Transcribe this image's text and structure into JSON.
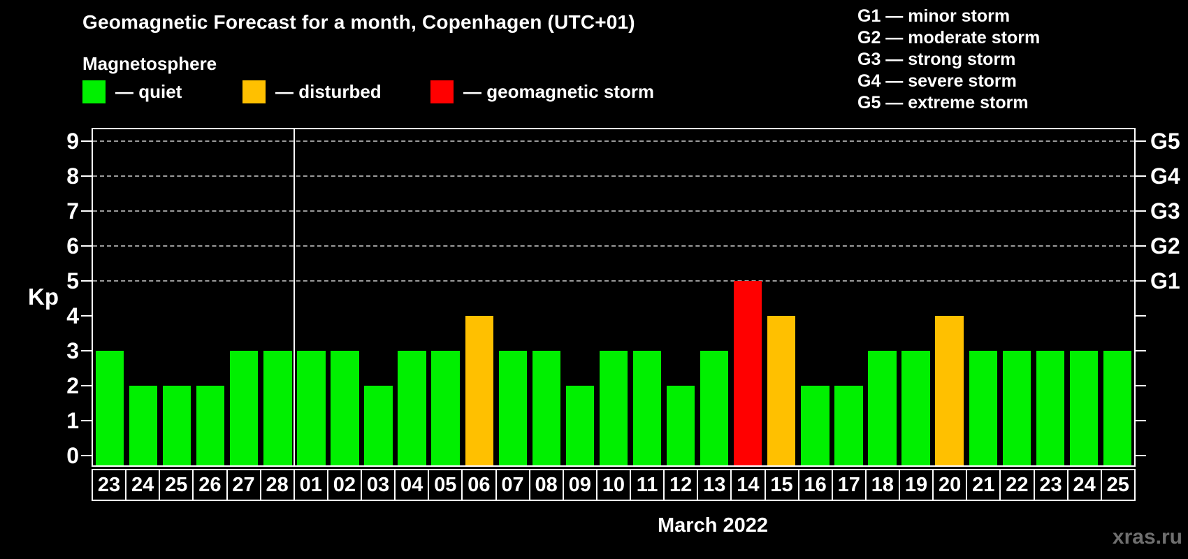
{
  "subtitle": "Magnetosphere",
  "watermark": "xras.ru",
  "legend": {
    "items": [
      {
        "name": "quiet",
        "color": "#00f000",
        "label": "— quiet",
        "x": 118
      },
      {
        "name": "disturbed",
        "color": "#ffc000",
        "label": "— disturbed",
        "x": 347
      },
      {
        "name": "storm",
        "color": "#ff0000",
        "label": "— geomagnetic storm",
        "x": 616
      }
    ]
  },
  "storm_scale": [
    "G1 — minor storm",
    "G2 — moderate storm",
    "G3 — strong storm",
    "G4 — severe storm",
    "G5 — extreme storm"
  ],
  "chart_data": {
    "type": "bar",
    "title": "Geomagnetic Forecast for a month, Copenhagen (UTC+01)",
    "ylabel": "Kp",
    "xlabel": "March 2022",
    "ylim": [
      0,
      9
    ],
    "yticks": [
      0,
      1,
      2,
      3,
      4,
      5,
      6,
      7,
      8,
      9
    ],
    "gridlines_at": [
      5,
      6,
      7,
      8,
      9
    ],
    "grid_style": "dashed",
    "right_axis_labels": [
      {
        "label": "G1",
        "kp": 5
      },
      {
        "label": "G2",
        "kp": 6
      },
      {
        "label": "G3",
        "kp": 7
      },
      {
        "label": "G4",
        "kp": 8
      },
      {
        "label": "G5",
        "kp": 9
      }
    ],
    "status_colors": {
      "quiet": "#00f000",
      "disturbed": "#ffc000",
      "storm": "#ff0000"
    },
    "month_separator_after_index": 5,
    "bars": [
      {
        "date": "23",
        "kp": 3,
        "status": "quiet"
      },
      {
        "date": "24",
        "kp": 2,
        "status": "quiet"
      },
      {
        "date": "25",
        "kp": 2,
        "status": "quiet"
      },
      {
        "date": "26",
        "kp": 2,
        "status": "quiet"
      },
      {
        "date": "27",
        "kp": 3,
        "status": "quiet"
      },
      {
        "date": "28",
        "kp": 3,
        "status": "quiet"
      },
      {
        "date": "01",
        "kp": 3,
        "status": "quiet"
      },
      {
        "date": "02",
        "kp": 3,
        "status": "quiet"
      },
      {
        "date": "03",
        "kp": 2,
        "status": "quiet"
      },
      {
        "date": "04",
        "kp": 3,
        "status": "quiet"
      },
      {
        "date": "05",
        "kp": 3,
        "status": "quiet"
      },
      {
        "date": "06",
        "kp": 4,
        "status": "disturbed"
      },
      {
        "date": "07",
        "kp": 3,
        "status": "quiet"
      },
      {
        "date": "08",
        "kp": 3,
        "status": "quiet"
      },
      {
        "date": "09",
        "kp": 2,
        "status": "quiet"
      },
      {
        "date": "10",
        "kp": 3,
        "status": "quiet"
      },
      {
        "date": "11",
        "kp": 3,
        "status": "quiet"
      },
      {
        "date": "12",
        "kp": 2,
        "status": "quiet"
      },
      {
        "date": "13",
        "kp": 3,
        "status": "quiet"
      },
      {
        "date": "14",
        "kp": 5,
        "status": "storm"
      },
      {
        "date": "15",
        "kp": 4,
        "status": "disturbed"
      },
      {
        "date": "16",
        "kp": 2,
        "status": "quiet"
      },
      {
        "date": "17",
        "kp": 2,
        "status": "quiet"
      },
      {
        "date": "18",
        "kp": 3,
        "status": "quiet"
      },
      {
        "date": "19",
        "kp": 3,
        "status": "quiet"
      },
      {
        "date": "20",
        "kp": 4,
        "status": "disturbed"
      },
      {
        "date": "21",
        "kp": 3,
        "status": "quiet"
      },
      {
        "date": "22",
        "kp": 3,
        "status": "quiet"
      },
      {
        "date": "23",
        "kp": 3,
        "status": "quiet"
      },
      {
        "date": "24",
        "kp": 3,
        "status": "quiet"
      },
      {
        "date": "25",
        "kp": 3,
        "status": "quiet"
      }
    ]
  }
}
